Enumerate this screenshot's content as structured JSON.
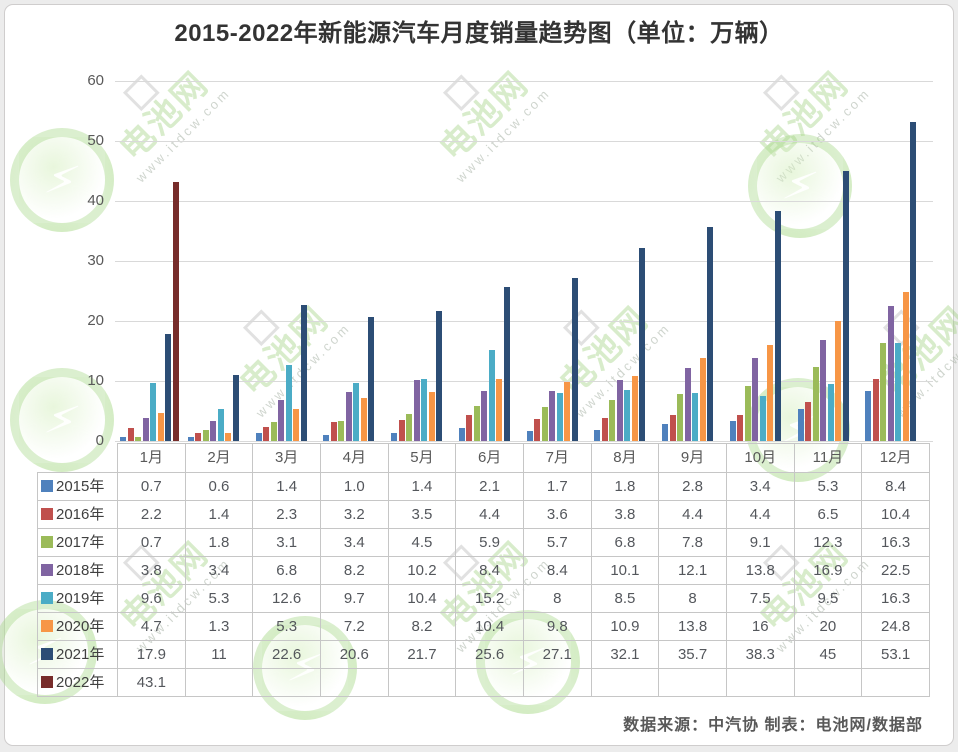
{
  "title": "2015-2022年新能源汽车月度销量趋势图（单位：万辆）",
  "footer": "数据来源：中汽协 制表：电池网/数据部",
  "watermark": {
    "brand": "电池网",
    "url": "www.itdcw.com"
  },
  "chart_data": {
    "type": "bar",
    "title": "2015-2022年新能源汽车月度销量趋势图（单位：万辆）",
    "unit": "万辆",
    "xlabel": "",
    "ylabel": "",
    "ylim": [
      0,
      60
    ],
    "yticks": [
      0,
      10,
      20,
      30,
      40,
      50,
      60
    ],
    "grid": "horizontal",
    "legend_position": "table-left",
    "categories": [
      "1月",
      "2月",
      "3月",
      "4月",
      "5月",
      "6月",
      "7月",
      "8月",
      "9月",
      "10月",
      "11月",
      "12月"
    ],
    "series": [
      {
        "name": "2015年",
        "color": "#4F81BD",
        "values": [
          0.7,
          0.6,
          1.4,
          1.0,
          1.4,
          2.1,
          1.7,
          1.8,
          2.8,
          3.4,
          5.3,
          8.4
        ],
        "display": [
          "0.7",
          "0.6",
          "1.4",
          "1.0",
          "1.4",
          "2.1",
          "1.7",
          "1.8",
          "2.8",
          "3.4",
          "5.3",
          "8.4"
        ]
      },
      {
        "name": "2016年",
        "color": "#C0504D",
        "values": [
          2.2,
          1.4,
          2.3,
          3.2,
          3.5,
          4.4,
          3.6,
          3.8,
          4.4,
          4.4,
          6.5,
          10.4
        ],
        "display": [
          "2.2",
          "1.4",
          "2.3",
          "3.2",
          "3.5",
          "4.4",
          "3.6",
          "3.8",
          "4.4",
          "4.4",
          "6.5",
          "10.4"
        ]
      },
      {
        "name": "2017年",
        "color": "#9BBB59",
        "values": [
          0.7,
          1.8,
          3.1,
          3.4,
          4.5,
          5.9,
          5.7,
          6.8,
          7.8,
          9.1,
          12.3,
          16.3
        ],
        "display": [
          "0.7",
          "1.8",
          "3.1",
          "3.4",
          "4.5",
          "5.9",
          "5.7",
          "6.8",
          "7.8",
          "9.1",
          "12.3",
          "16.3"
        ]
      },
      {
        "name": "2018年",
        "color": "#8064A2",
        "values": [
          3.8,
          3.4,
          6.8,
          8.2,
          10.2,
          8.4,
          8.4,
          10.1,
          12.1,
          13.8,
          16.9,
          22.5
        ],
        "display": [
          "3.8",
          "3.4",
          "6.8",
          "8.2",
          "10.2",
          "8.4",
          "8.4",
          "10.1",
          "12.1",
          "13.8",
          "16.9",
          "22.5"
        ]
      },
      {
        "name": "2019年",
        "color": "#4BACC6",
        "values": [
          9.6,
          5.3,
          12.6,
          9.7,
          10.4,
          15.2,
          8,
          8.5,
          8,
          7.5,
          9.5,
          16.3
        ],
        "display": [
          "9.6",
          "5.3",
          "12.6",
          "9.7",
          "10.4",
          "15.2",
          "8",
          "8.5",
          "8",
          "7.5",
          "9.5",
          "16.3"
        ]
      },
      {
        "name": "2020年",
        "color": "#F79646",
        "values": [
          4.7,
          1.3,
          5.3,
          7.2,
          8.2,
          10.4,
          9.8,
          10.9,
          13.8,
          16,
          20,
          24.8
        ],
        "display": [
          "4.7",
          "1.3",
          "5.3",
          "7.2",
          "8.2",
          "10.4",
          "9.8",
          "10.9",
          "13.8",
          "16",
          "20",
          "24.8"
        ]
      },
      {
        "name": "2021年",
        "color": "#2C4D75",
        "values": [
          17.9,
          11,
          22.6,
          20.6,
          21.7,
          25.6,
          27.1,
          32.1,
          35.7,
          38.3,
          45,
          53.1
        ],
        "display": [
          "17.9",
          "11",
          "22.6",
          "20.6",
          "21.7",
          "25.6",
          "27.1",
          "32.1",
          "35.7",
          "38.3",
          "45",
          "53.1"
        ]
      },
      {
        "name": "2022年",
        "color": "#772C2A",
        "values": [
          43.1,
          null,
          null,
          null,
          null,
          null,
          null,
          null,
          null,
          null,
          null,
          null
        ],
        "display": [
          "43.1",
          "",
          "",
          "",
          "",
          "",
          "",
          "",
          "",
          "",
          "",
          ""
        ]
      }
    ]
  }
}
